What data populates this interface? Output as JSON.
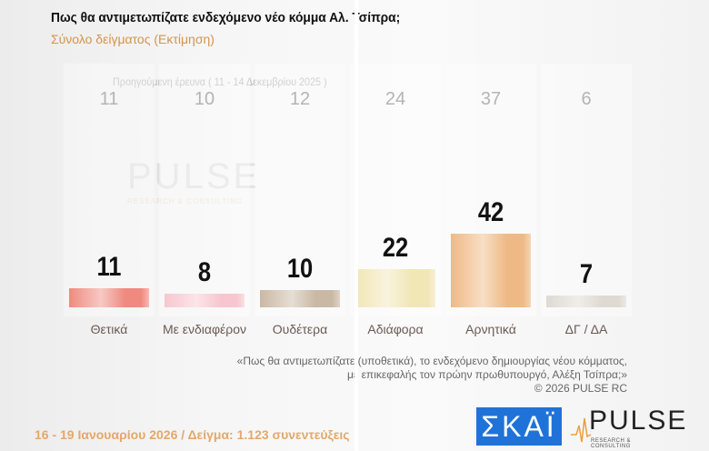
{
  "header": {
    "title": "Πως θα αντιμετωπίζατε ενδεχόμενο νέο κόμμα Αλ. Τσίπρα;",
    "subtitle": "Σύνολο δείγματος  (Εκτίμηση)"
  },
  "previous_survey_label": "Προηγούμενη έρευνα ( 11 - 14 Δεκεμβρίου 2025 )",
  "chart_data": {
    "type": "bar",
    "categories": [
      "Θετικά",
      "Με ενδιαφέρον",
      "Ουδέτερα",
      "Αδιάφορα",
      "Αρνητικά",
      "ΔΓ / ΔΑ"
    ],
    "values": [
      11,
      8,
      10,
      22,
      42,
      7
    ],
    "previous_values": [
      11,
      10,
      12,
      24,
      37,
      6
    ],
    "colors": [
      "#ef8a80",
      "#f8c6cf",
      "#c9b8a4",
      "#f1e6b6",
      "#efb985",
      "#dedad2"
    ],
    "ylim": [
      0,
      42
    ]
  },
  "watermark": {
    "title": "PULSE",
    "subtitle": "RESEARCH & CONSULTING"
  },
  "notes": {
    "line1": "«Πως θα αντιμετωπίζατε (υποθετικά), το ενδεχόμενο δημιουργίας νέου κόμματος,",
    "line2": "με επικεφαλής τον πρώην πρωθυπουργό, Αλέξη Τσίπρα;»",
    "copyright": "©  2026  PULSE RC"
  },
  "footer": "16 - 19 Ιανουαρίου 2026  /  Δείγμα:  1.123 συνεντεύξεις",
  "logos": {
    "skai": "ΣΚΑΪ",
    "pulse": "PULSE",
    "pulse_sub": "RESEARCH & CONSULTING"
  }
}
